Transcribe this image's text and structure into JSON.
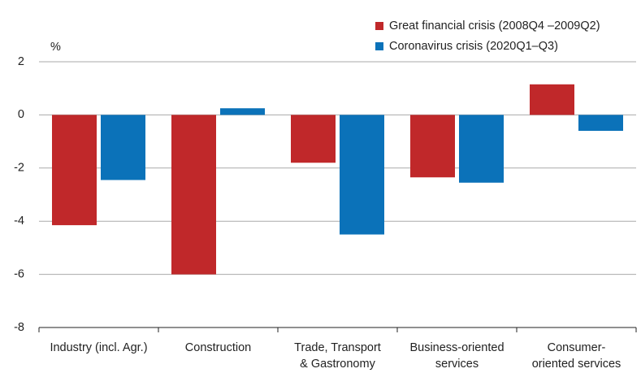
{
  "chart_data": {
    "type": "bar",
    "y_unit": "%",
    "categories": [
      [
        "Industry (incl. Agr.)"
      ],
      [
        "Construction"
      ],
      [
        "Trade, Transport",
        "& Gastronomy"
      ],
      [
        "Business-oriented",
        "services"
      ],
      [
        "Consumer-",
        "oriented services"
      ]
    ],
    "series": [
      {
        "name": "Great financial crisis (2008Q4 –2009Q2)",
        "color": "#c0282a",
        "values": [
          -4.15,
          -6.0,
          -1.8,
          -2.35,
          1.15
        ]
      },
      {
        "name": "Coronavirus crisis (2020Q1–Q3)",
        "color": "#0b72b9",
        "values": [
          -2.45,
          0.25,
          -4.5,
          -2.55,
          -0.6
        ]
      }
    ],
    "ylim": [
      -8,
      2
    ],
    "yticks": [
      -8,
      -6,
      -4,
      -2,
      0,
      2
    ],
    "grid": true,
    "legend": "top-right"
  }
}
